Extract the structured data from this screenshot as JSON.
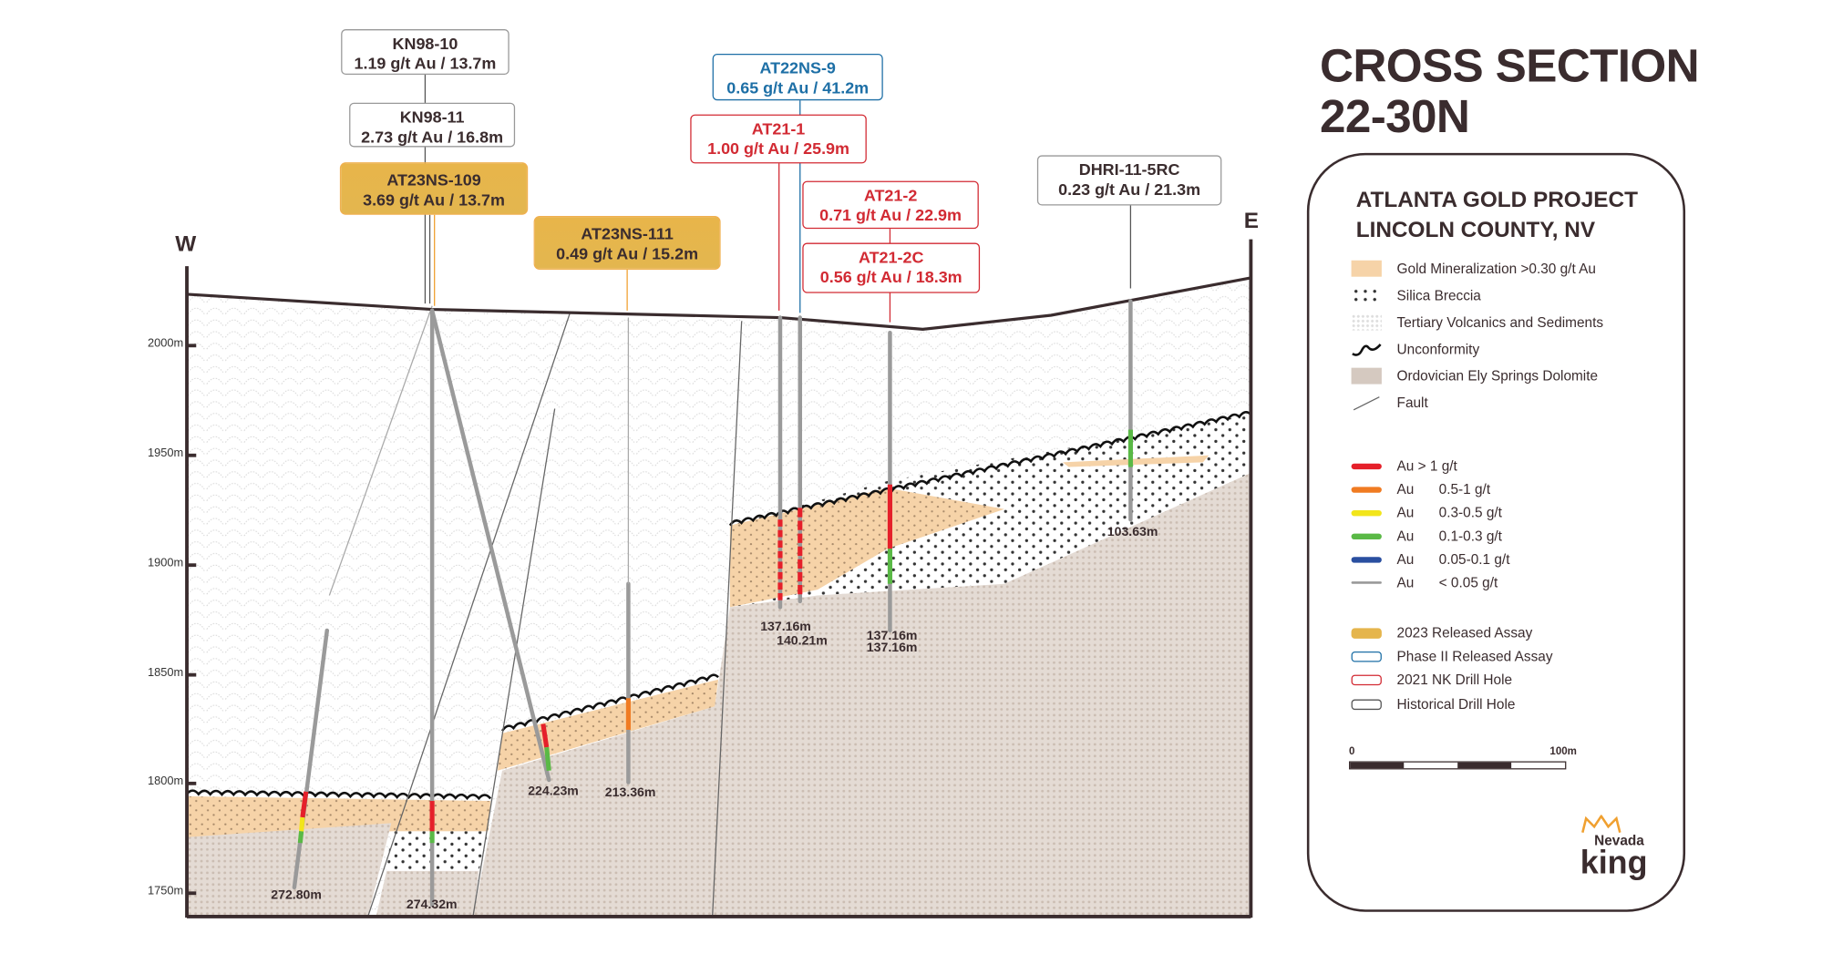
{
  "title": {
    "line1": "CROSS SECTION",
    "line2": "22-30N"
  },
  "directions": {
    "west": "W",
    "east": "E"
  },
  "elevations": [
    "2000m",
    "1950m",
    "1900m",
    "1850m",
    "1800m",
    "1750m"
  ],
  "callouts": [
    {
      "hole": "KN98-10",
      "result": "1.19 g/t Au / 13.7m",
      "type": "historical"
    },
    {
      "hole": "KN98-11",
      "result": "2.73 g/t Au / 16.8m",
      "type": "historical"
    },
    {
      "hole": "AT23NS-109",
      "result": "3.69 g/t Au / 13.7m",
      "type": "2023"
    },
    {
      "hole": "AT23NS-111",
      "result": "0.49 g/t Au / 15.2m",
      "type": "2023"
    },
    {
      "hole": "AT22NS-9",
      "result": "0.65 g/t Au / 41.2m",
      "type": "phase2"
    },
    {
      "hole": "AT21-1",
      "result": "1.00 g/t Au / 25.9m",
      "type": "2021"
    },
    {
      "hole": "AT21-2",
      "result": "0.71 g/t Au / 22.9m",
      "type": "2021"
    },
    {
      "hole": "AT21-2C",
      "result": "0.56 g/t Au / 18.3m",
      "type": "2021"
    },
    {
      "hole": "DHRI-11-5RC",
      "result": "0.23 g/t Au / 21.3m",
      "type": "historical"
    }
  ],
  "depths": [
    "272.80m",
    "274.32m",
    "224.23m",
    "213.36m",
    "137.16m",
    "140.21m",
    "137.16m",
    "137.16m",
    "103.63m"
  ],
  "legend": {
    "title1": "ATLANTA GOLD PROJECT",
    "title2": "LINCOLN COUNTY, NV",
    "units": [
      "Gold Mineralization >0.30 g/t Au",
      "Silica Breccia",
      "Tertiary Volcanics and Sediments",
      "Unconformity",
      "Ordovician Ely Springs Dolomite",
      "Fault"
    ],
    "grades": [
      {
        "label": "Au > 1 g/t",
        "color": "#e5202a"
      },
      {
        "prefix": "Au",
        "label": "0.5-1 g/t",
        "color": "#f07b22"
      },
      {
        "prefix": "Au",
        "label": "0.3-0.5 g/t",
        "color": "#f2e51a"
      },
      {
        "prefix": "Au",
        "label": "0.1-0.3 g/t",
        "color": "#5ab946"
      },
      {
        "prefix": "Au",
        "label": "0.05-0.1 g/t",
        "color": "#2a4fa0"
      },
      {
        "prefix": "Au",
        "label": "< 0.05 g/t",
        "color": "#999999"
      }
    ],
    "holes": [
      "2023 Released Assay",
      "Phase II Released Assay",
      "2021 NK Drill Hole",
      "Historical Drill Hole"
    ],
    "scale": {
      "start": "0",
      "end": "100m"
    }
  },
  "logo": {
    "line1": "Nevada",
    "line2": "king"
  },
  "colors": {
    "gold": "#f6d3a8",
    "dolomite": "#e0d5cd",
    "text": "#3a2c2e",
    "blue": "#1d6fa6",
    "red": "#d22a33",
    "assay2023": "#e5b54c"
  }
}
